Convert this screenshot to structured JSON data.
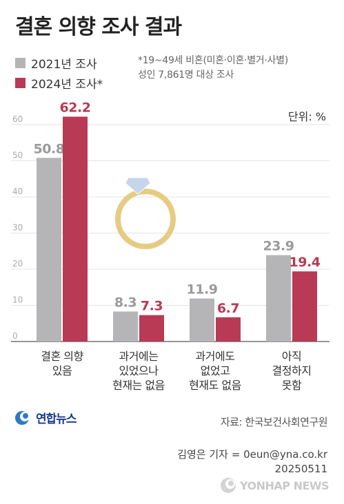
{
  "title": "결혼 의향 조사 결과",
  "legend": [
    {
      "label": "2021년 조사",
      "color": "#b5b5b7"
    },
    {
      "label": "2024년 조사*",
      "color": "#b83a55"
    }
  ],
  "note": {
    "line1": "*19~49세 비혼(미혼·이혼·별거·사별)",
    "line2": "성인 7,861명 대상 조사"
  },
  "unit": "단위: %",
  "chart_data": {
    "type": "bar",
    "categories": [
      "결혼 의향\n있음",
      "과거에는\n있었으나\n현재는 없음",
      "과거에도\n없었고\n현재도 없음",
      "아직\n결정하지\n못함"
    ],
    "series": [
      {
        "name": "2021년 조사",
        "values": [
          50.8,
          8.3,
          11.9,
          23.9
        ],
        "color": "#b5b5b7"
      },
      {
        "name": "2024년 조사*",
        "values": [
          62.2,
          7.3,
          6.7,
          19.4
        ],
        "color": "#b83a55"
      }
    ],
    "yticks": [
      0,
      10,
      20,
      30,
      40,
      50,
      60
    ],
    "ylim": [
      0,
      65
    ],
    "grid": true,
    "value_label_colors": [
      "#9a9a9c",
      "#b83a55"
    ]
  },
  "footer": {
    "logo": "연합뉴스",
    "source": "자료: 한국보건사회연구원",
    "reporter": "김영은 기자 = 0eun@yna.co.kr",
    "date": "20250511",
    "watermark": "YONHAP NEWS"
  }
}
